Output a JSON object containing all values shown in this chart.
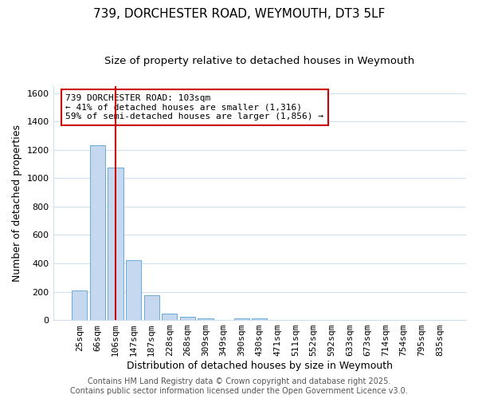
{
  "title": "739, DORCHESTER ROAD, WEYMOUTH, DT3 5LF",
  "subtitle": "Size of property relative to detached houses in Weymouth",
  "xlabel": "Distribution of detached houses by size in Weymouth",
  "ylabel": "Number of detached properties",
  "categories": [
    "25sqm",
    "66sqm",
    "106sqm",
    "147sqm",
    "187sqm",
    "228sqm",
    "268sqm",
    "309sqm",
    "349sqm",
    "390sqm",
    "430sqm",
    "471sqm",
    "511sqm",
    "552sqm",
    "592sqm",
    "633sqm",
    "673sqm",
    "714sqm",
    "754sqm",
    "795sqm",
    "835sqm"
  ],
  "values": [
    206,
    1232,
    1075,
    420,
    175,
    47,
    25,
    12,
    0,
    12,
    12,
    0,
    0,
    0,
    0,
    0,
    0,
    0,
    0,
    0,
    0
  ],
  "bar_color": "#c5d8f0",
  "bar_edge_color": "#6aaad4",
  "red_line_index": 2,
  "red_line_color": "#cc0000",
  "ylim": [
    0,
    1650
  ],
  "yticks": [
    0,
    200,
    400,
    600,
    800,
    1000,
    1200,
    1400,
    1600
  ],
  "annotation_text": "739 DORCHESTER ROAD: 103sqm\n← 41% of detached houses are smaller (1,316)\n59% of semi-detached houses are larger (1,856) →",
  "background_color": "#ffffff",
  "grid_color": "#d0dff0",
  "footer_line1": "Contains HM Land Registry data © Crown copyright and database right 2025.",
  "footer_line2": "Contains public sector information licensed under the Open Government Licence v3.0.",
  "title_fontsize": 11,
  "subtitle_fontsize": 9.5,
  "label_fontsize": 9,
  "tick_fontsize": 8,
  "annotation_fontsize": 8,
  "footer_fontsize": 7
}
